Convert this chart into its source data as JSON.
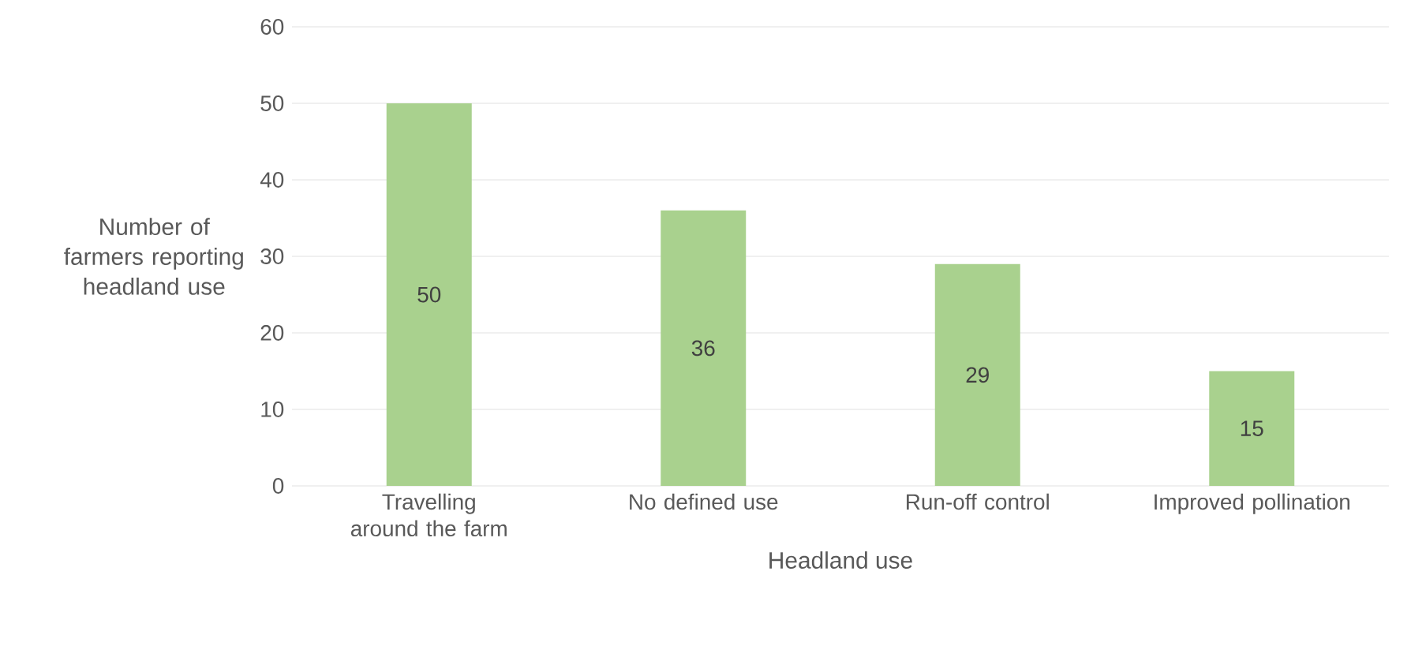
{
  "chart_data": {
    "type": "bar",
    "xlabel": "Headland use",
    "ylabel": "Number of farmers reporting headland use",
    "categories": [
      "Travelling around the farm",
      "No defined use",
      "Run-off control",
      "Improved pollination"
    ],
    "values": [
      50,
      36,
      29,
      15
    ],
    "color": "#a9d18e",
    "ylim": [
      0,
      60
    ],
    "yticks": [
      0,
      10,
      20,
      30,
      40,
      50,
      60
    ],
    "grid": "y",
    "data_labels": true
  }
}
